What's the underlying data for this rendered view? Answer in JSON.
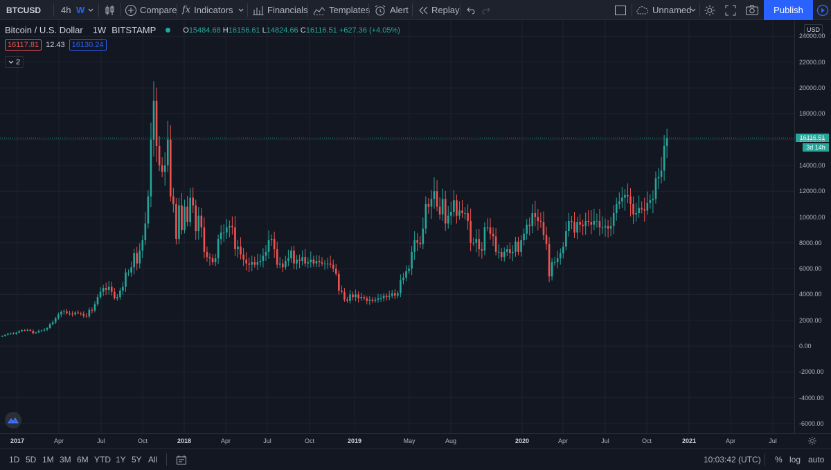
{
  "toolbar": {
    "symbol": "BTCUSD",
    "intervals": [
      "4h",
      "W"
    ],
    "compare": "Compare",
    "indicators": "Indicators",
    "financials": "Financials",
    "templates": "Templates",
    "alert": "Alert",
    "replay": "Replay",
    "layout_name": "Unnamed",
    "publish": "Publish"
  },
  "legend": {
    "title": "Bitcoin / U.S. Dollar",
    "interval": "1W",
    "exchange": "BITSTAMP",
    "o_label": "O",
    "o": "15484.68",
    "h_label": "H",
    "h": "16156.61",
    "l_label": "L",
    "l": "14824.66",
    "c_label": "C",
    "c": "16116.51",
    "change": "+627.36 (+4.05%)",
    "bid": "16117.81",
    "spread": "12.43",
    "ask": "16130.24",
    "indicator_count": "2"
  },
  "price_axis": {
    "currency": "USD",
    "labels": [
      "24000.00",
      "22000.00",
      "20000.00",
      "18000.00",
      "16000.00",
      "14000.00",
      "12000.00",
      "10000.00",
      "8000.00",
      "6000.00",
      "4000.00",
      "2000.00",
      "0.00",
      "-2000.00",
      "-4000.00",
      "-6000.00"
    ],
    "last_price": "16116.51",
    "countdown": "3d 14h"
  },
  "time_axis": {
    "labels": [
      {
        "text": "2017",
        "major": true
      },
      {
        "text": "Apr",
        "major": false
      },
      {
        "text": "Jul",
        "major": false
      },
      {
        "text": "Oct",
        "major": false
      },
      {
        "text": "2018",
        "major": true
      },
      {
        "text": "Apr",
        "major": false
      },
      {
        "text": "Jul",
        "major": false
      },
      {
        "text": "Oct",
        "major": false
      },
      {
        "text": "2019",
        "major": true
      },
      {
        "text": "May",
        "major": false
      },
      {
        "text": "Aug",
        "major": false
      },
      {
        "text": "2020",
        "major": true
      },
      {
        "text": "Apr",
        "major": false
      },
      {
        "text": "Jul",
        "major": false
      },
      {
        "text": "Oct",
        "major": false
      },
      {
        "text": "2021",
        "major": true
      },
      {
        "text": "Apr",
        "major": false
      },
      {
        "text": "Jul",
        "major": false
      }
    ]
  },
  "bottom_bar": {
    "ranges": [
      "1D",
      "5D",
      "1M",
      "3M",
      "6M",
      "YTD",
      "1Y",
      "5Y",
      "All"
    ],
    "clock": "10:03:42 (UTC)",
    "percent": "%",
    "log": "log",
    "auto": "auto"
  },
  "colors": {
    "up": "#26a69a",
    "down": "#ef5350",
    "accent": "#2962ff",
    "background": "#131722"
  },
  "chart_data": {
    "type": "candlestick",
    "symbol": "BTCUSD",
    "interval": "1W",
    "ylim": [
      -6500,
      24500
    ],
    "grid": true,
    "y_ticks": [
      -6000,
      -4000,
      -2000,
      0,
      2000,
      4000,
      6000,
      8000,
      10000,
      12000,
      14000,
      16000,
      18000,
      20000,
      22000,
      24000
    ],
    "x_ticks": [
      "2017",
      "Apr",
      "Jul",
      "Oct",
      "2018",
      "Apr",
      "Jul",
      "Oct",
      "2019",
      "May",
      "Aug",
      "2020",
      "Apr",
      "Jul",
      "Oct",
      "2021",
      "Apr",
      "Jul"
    ],
    "last_close": 16116.51,
    "weekly_closes": [
      780,
      870,
      960,
      1000,
      950,
      1040,
      1150,
      1230,
      1200,
      1260,
      1180,
      1000,
      1060,
      1180,
      1200,
      1280,
      1400,
      1700,
      1850,
      2150,
      2450,
      2650,
      2700,
      2550,
      2500,
      2450,
      2600,
      2550,
      2500,
      2350,
      2300,
      2800,
      2760,
      3250,
      3800,
      4200,
      4500,
      4350,
      4600,
      4200,
      3700,
      3800,
      4300,
      4600,
      5700,
      5700,
      6100,
      7200,
      6400,
      7400,
      8200,
      9500,
      11600,
      16000,
      19000,
      15500,
      14000,
      13500,
      14000,
      16000,
      11600,
      11000,
      8300,
      10900,
      9000,
      10800,
      9600,
      11500,
      10900,
      8900,
      10100,
      9200,
      7300,
      6900,
      6800,
      6500,
      6800,
      8300,
      8800,
      8800,
      9200,
      9300,
      9200,
      7500,
      7700,
      7100,
      6700,
      6400,
      6300,
      6500,
      6300,
      6500,
      6600,
      7000,
      7300,
      8200,
      8300,
      7500,
      6300,
      6400,
      6100,
      6600,
      6800,
      7400,
      6400,
      6700,
      6600,
      6900,
      6400,
      6500,
      6700,
      6400,
      6600,
      6500,
      6400,
      6400,
      6400,
      6300,
      6000,
      5600,
      4300,
      4200,
      3600,
      3500,
      4000,
      3800,
      4000,
      3700,
      3800,
      3700,
      3500,
      3600,
      3500,
      3600,
      3700,
      3700,
      3900,
      3800,
      3900,
      4100,
      3900,
      4100,
      5100,
      5300,
      5800,
      6000,
      7300,
      8200,
      8000,
      7900,
      9100,
      11000,
      10800,
      11400,
      12000,
      10800,
      10200,
      11400,
      9500,
      10100,
      10400,
      11300,
      10100,
      10500,
      10300,
      10300,
      9700,
      8000,
      8000,
      8300,
      7500,
      7400,
      9200,
      9200,
      8700,
      8500,
      7300,
      7300,
      6900,
      7300,
      7500,
      7200,
      7300,
      8100,
      7300,
      8200,
      8700,
      9400,
      9300,
      10300,
      10000,
      9700,
      9600,
      8600,
      7900,
      5400,
      6500,
      6500,
      6800,
      7200,
      7700,
      8900,
      9700,
      9600,
      8800,
      9600,
      9400,
      9300,
      9700,
      9600,
      9400,
      9700,
      9700,
      9200,
      9200,
      9300,
      9100,
      9300,
      10300,
      11000,
      11200,
      11500,
      11700,
      11600,
      11000,
      10200,
      10300,
      10700,
      10600,
      10500,
      11100,
      11300,
      11400,
      13000,
      13100,
      13600,
      15500,
      16116.51
    ]
  }
}
